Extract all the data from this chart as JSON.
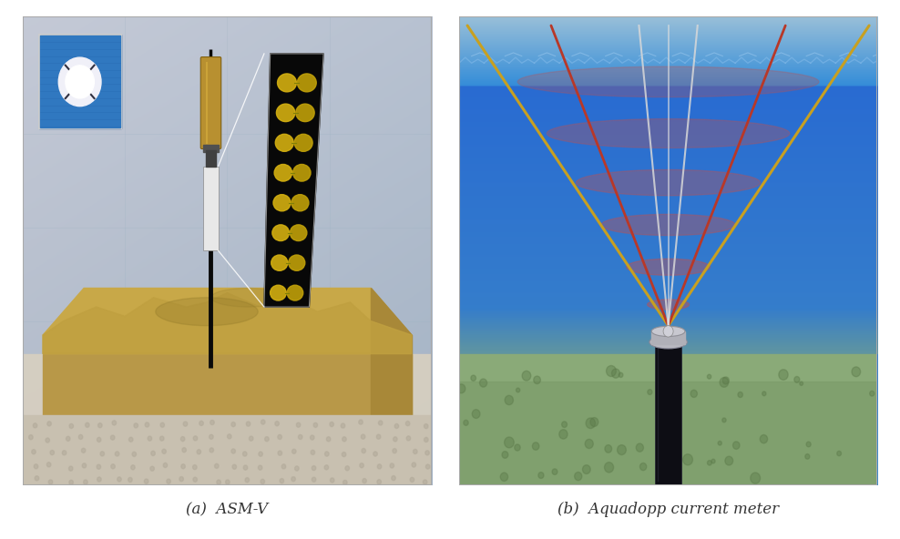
{
  "caption_left": "(a)  ASM-V",
  "caption_right": "(b)  Aquadopp current meter",
  "caption_fontsize": 12,
  "caption_color": "#333333",
  "fig_bg": "#ffffff",
  "figsize": [
    9.88,
    5.92
  ],
  "dpi": 100,
  "left_panel": {
    "bg_top": "#b0bece",
    "bg_mid": "#a8b8cc",
    "bg_bottom": "#8898aa",
    "sand_color": "#c8a855",
    "sand_dark": "#b09040",
    "sand_shadow": "#888070",
    "pole_color": "#1a1008",
    "sensor_color": "#b8900a",
    "inset_bg": "#000000"
  },
  "right_panel": {
    "water_top": "#3890d8",
    "water_mid": "#2878c0",
    "water_bottom": "#1860a0",
    "seafloor": "#8aaa78",
    "seafloor_dark": "#6a8a58",
    "beam_yellow": "#c8a020",
    "beam_red": "#c03030",
    "beam_white": "#d0d0d0",
    "ellipse_color": "#c06060",
    "pole_color": "#101018",
    "connector_color": "#b0b0b0"
  }
}
